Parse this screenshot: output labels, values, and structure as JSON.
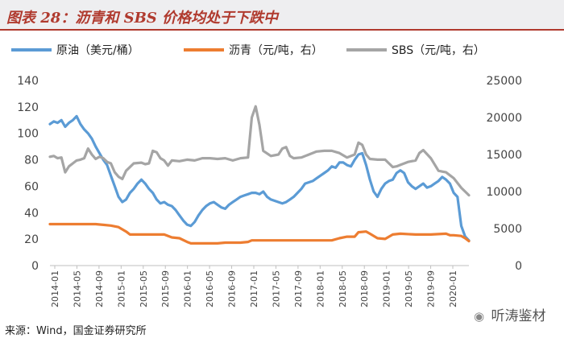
{
  "title": "图表 28：沥青和 SBS 价格均处于下跌中",
  "source": "来源：Wind，国金证券研究所",
  "watermark": {
    "icon": "wechat-bubble-icon",
    "text": "听涛鉴材"
  },
  "chart_data": {
    "type": "line",
    "legend": [
      {
        "name": "原油（美元/桶）",
        "color": "#5b9bd5",
        "axis": "left"
      },
      {
        "name": "沥青（元/吨，右）",
        "color": "#ed7d31",
        "axis": "right"
      },
      {
        "name": "SBS（元/吨，右）",
        "color": "#a5a5a5",
        "axis": "right"
      }
    ],
    "x_labels": [
      "2014-01",
      "2014-05",
      "2014-09",
      "2015-01",
      "2015-05",
      "2015-09",
      "2016-01",
      "2016-05",
      "2016-09",
      "2017-01",
      "2017-05",
      "2017-09",
      "2018-01",
      "2018-05",
      "2018-09",
      "2019-01",
      "2019-05",
      "2019-09",
      "2020-01"
    ],
    "y_left": {
      "min": 0,
      "max": 140,
      "ticks": [
        0,
        20,
        40,
        60,
        80,
        100,
        120,
        140
      ]
    },
    "y_right": {
      "min": 0,
      "max": 25000,
      "ticks": [
        0,
        5000,
        10000,
        15000,
        20000,
        25000
      ]
    },
    "series": [
      {
        "name": "原油（美元/桶）",
        "color": "#5b9bd5",
        "axis": "left",
        "points": [
          [
            0,
            107
          ],
          [
            0.5,
            109
          ],
          [
            1,
            108
          ],
          [
            1.5,
            110
          ],
          [
            2,
            105
          ],
          [
            2.5,
            108
          ],
          [
            3,
            110
          ],
          [
            3.5,
            113
          ],
          [
            4,
            107
          ],
          [
            4.5,
            103
          ],
          [
            5,
            100
          ],
          [
            5.5,
            96
          ],
          [
            6,
            90
          ],
          [
            6.5,
            85
          ],
          [
            7,
            80
          ],
          [
            7.5,
            76
          ],
          [
            8,
            68
          ],
          [
            8.5,
            60
          ],
          [
            9,
            52
          ],
          [
            9.5,
            48
          ],
          [
            10,
            50
          ],
          [
            10.5,
            55
          ],
          [
            11,
            58
          ],
          [
            11.5,
            62
          ],
          [
            12,
            65
          ],
          [
            12.5,
            62
          ],
          [
            13,
            58
          ],
          [
            13.5,
            55
          ],
          [
            14,
            50
          ],
          [
            14.5,
            47
          ],
          [
            15,
            48
          ],
          [
            15.5,
            46
          ],
          [
            16,
            45
          ],
          [
            16.5,
            42
          ],
          [
            17,
            38
          ],
          [
            17.5,
            34
          ],
          [
            18,
            31
          ],
          [
            18.5,
            30
          ],
          [
            19,
            33
          ],
          [
            19.5,
            38
          ],
          [
            20,
            42
          ],
          [
            20.5,
            45
          ],
          [
            21,
            47
          ],
          [
            21.5,
            48
          ],
          [
            22,
            46
          ],
          [
            22.5,
            44
          ],
          [
            23,
            43
          ],
          [
            23.5,
            46
          ],
          [
            24,
            48
          ],
          [
            24.5,
            50
          ],
          [
            25,
            52
          ],
          [
            25.5,
            53
          ],
          [
            26,
            54
          ],
          [
            26.5,
            55
          ],
          [
            27,
            55
          ],
          [
            27.5,
            54
          ],
          [
            28,
            56
          ],
          [
            28.5,
            52
          ],
          [
            29,
            50
          ],
          [
            29.5,
            49
          ],
          [
            30,
            48
          ],
          [
            30.5,
            47
          ],
          [
            31,
            48
          ],
          [
            31.5,
            50
          ],
          [
            32,
            52
          ],
          [
            32.5,
            55
          ],
          [
            33,
            58
          ],
          [
            33.5,
            62
          ],
          [
            34,
            63
          ],
          [
            34.5,
            64
          ],
          [
            35,
            66
          ],
          [
            35.5,
            68
          ],
          [
            36,
            70
          ],
          [
            36.5,
            72
          ],
          [
            37,
            75
          ],
          [
            37.5,
            74
          ],
          [
            38,
            78
          ],
          [
            38.5,
            78
          ],
          [
            39,
            76
          ],
          [
            39.5,
            75
          ],
          [
            40,
            80
          ],
          [
            40.5,
            84
          ],
          [
            41,
            85
          ],
          [
            41.5,
            76
          ],
          [
            42,
            65
          ],
          [
            42.5,
            56
          ],
          [
            43,
            52
          ],
          [
            43.5,
            58
          ],
          [
            44,
            62
          ],
          [
            44.5,
            64
          ],
          [
            45,
            65
          ],
          [
            45.5,
            70
          ],
          [
            46,
            72
          ],
          [
            46.5,
            70
          ],
          [
            47,
            63
          ],
          [
            47.5,
            60
          ],
          [
            48,
            58
          ],
          [
            48.5,
            60
          ],
          [
            49,
            62
          ],
          [
            49.5,
            59
          ],
          [
            50,
            60
          ],
          [
            50.5,
            62
          ],
          [
            51,
            64
          ],
          [
            51.5,
            67
          ],
          [
            52,
            65
          ],
          [
            52.5,
            62
          ],
          [
            53,
            55
          ],
          [
            53.5,
            52
          ],
          [
            54,
            30
          ],
          [
            54.5,
            22
          ],
          [
            55,
            19
          ]
        ]
      },
      {
        "name": "沥青（元/吨，右）",
        "color": "#ed7d31",
        "axis": "right",
        "points": [
          [
            0,
            5600
          ],
          [
            2,
            5600
          ],
          [
            4,
            5600
          ],
          [
            6,
            5600
          ],
          [
            8,
            5400
          ],
          [
            9,
            5200
          ],
          [
            10,
            4600
          ],
          [
            10.5,
            4200
          ],
          [
            12,
            4200
          ],
          [
            14,
            4200
          ],
          [
            15,
            4200
          ],
          [
            16,
            3800
          ],
          [
            17,
            3700
          ],
          [
            18,
            3200
          ],
          [
            18.5,
            3000
          ],
          [
            20,
            3000
          ],
          [
            21,
            3000
          ],
          [
            22,
            3000
          ],
          [
            23,
            3100
          ],
          [
            24,
            3100
          ],
          [
            25,
            3100
          ],
          [
            26,
            3200
          ],
          [
            26.5,
            3400
          ],
          [
            28,
            3400
          ],
          [
            30,
            3400
          ],
          [
            32,
            3400
          ],
          [
            34,
            3400
          ],
          [
            36,
            3400
          ],
          [
            37,
            3400
          ],
          [
            38,
            3700
          ],
          [
            39,
            3900
          ],
          [
            40,
            3900
          ],
          [
            40.5,
            4500
          ],
          [
            41.5,
            4600
          ],
          [
            42,
            4300
          ],
          [
            43,
            3700
          ],
          [
            44,
            3600
          ],
          [
            45,
            4200
          ],
          [
            46,
            4300
          ],
          [
            48,
            4200
          ],
          [
            50,
            4200
          ],
          [
            52,
            4300
          ],
          [
            52.5,
            4100
          ],
          [
            53,
            4100
          ],
          [
            54,
            4000
          ],
          [
            54.5,
            3700
          ],
          [
            55,
            3300
          ]
        ]
      },
      {
        "name": "SBS（元/吨，右）",
        "color": "#a5a5a5",
        "axis": "right",
        "points": [
          [
            0,
            14700
          ],
          [
            0.5,
            14800
          ],
          [
            1,
            14500
          ],
          [
            1.5,
            14600
          ],
          [
            2,
            12600
          ],
          [
            2.5,
            13400
          ],
          [
            3,
            13800
          ],
          [
            3.5,
            14200
          ],
          [
            4,
            14300
          ],
          [
            4.5,
            14500
          ],
          [
            5,
            15800
          ],
          [
            5.5,
            15000
          ],
          [
            6,
            14400
          ],
          [
            6.5,
            14700
          ],
          [
            7,
            14500
          ],
          [
            7.5,
            14000
          ],
          [
            8,
            13800
          ],
          [
            8.5,
            12600
          ],
          [
            9,
            12000
          ],
          [
            9.5,
            11700
          ],
          [
            10,
            12800
          ],
          [
            11,
            13800
          ],
          [
            12,
            13900
          ],
          [
            12.5,
            13700
          ],
          [
            13,
            13800
          ],
          [
            13.5,
            15500
          ],
          [
            14,
            15300
          ],
          [
            14.5,
            14500
          ],
          [
            15,
            14200
          ],
          [
            15.5,
            13500
          ],
          [
            16,
            14200
          ],
          [
            17,
            14100
          ],
          [
            18,
            14300
          ],
          [
            19,
            14200
          ],
          [
            20,
            14500
          ],
          [
            21,
            14500
          ],
          [
            22,
            14400
          ],
          [
            23,
            14500
          ],
          [
            24,
            14200
          ],
          [
            25,
            14500
          ],
          [
            26,
            14600
          ],
          [
            26.5,
            20000
          ],
          [
            27,
            21500
          ],
          [
            27.5,
            19000
          ],
          [
            28,
            15500
          ],
          [
            29,
            14800
          ],
          [
            30,
            15000
          ],
          [
            30.5,
            15800
          ],
          [
            31,
            16000
          ],
          [
            31.5,
            14800
          ],
          [
            32,
            14500
          ],
          [
            33,
            14600
          ],
          [
            34,
            15000
          ],
          [
            35,
            15400
          ],
          [
            36,
            15500
          ],
          [
            37,
            15500
          ],
          [
            38,
            15200
          ],
          [
            39,
            14600
          ],
          [
            40,
            15000
          ],
          [
            40.5,
            16600
          ],
          [
            41,
            16300
          ],
          [
            41.5,
            15000
          ],
          [
            42,
            14400
          ],
          [
            43,
            14300
          ],
          [
            44,
            14300
          ],
          [
            45,
            13300
          ],
          [
            45.5,
            13400
          ],
          [
            46,
            13600
          ],
          [
            47,
            14000
          ],
          [
            48,
            14200
          ],
          [
            48.5,
            15200
          ],
          [
            49,
            15600
          ],
          [
            50,
            14500
          ],
          [
            51,
            12800
          ],
          [
            51.5,
            12700
          ],
          [
            52,
            12600
          ],
          [
            52.5,
            12200
          ],
          [
            53,
            11800
          ],
          [
            54,
            10500
          ],
          [
            55,
            9500
          ]
        ]
      }
    ]
  }
}
